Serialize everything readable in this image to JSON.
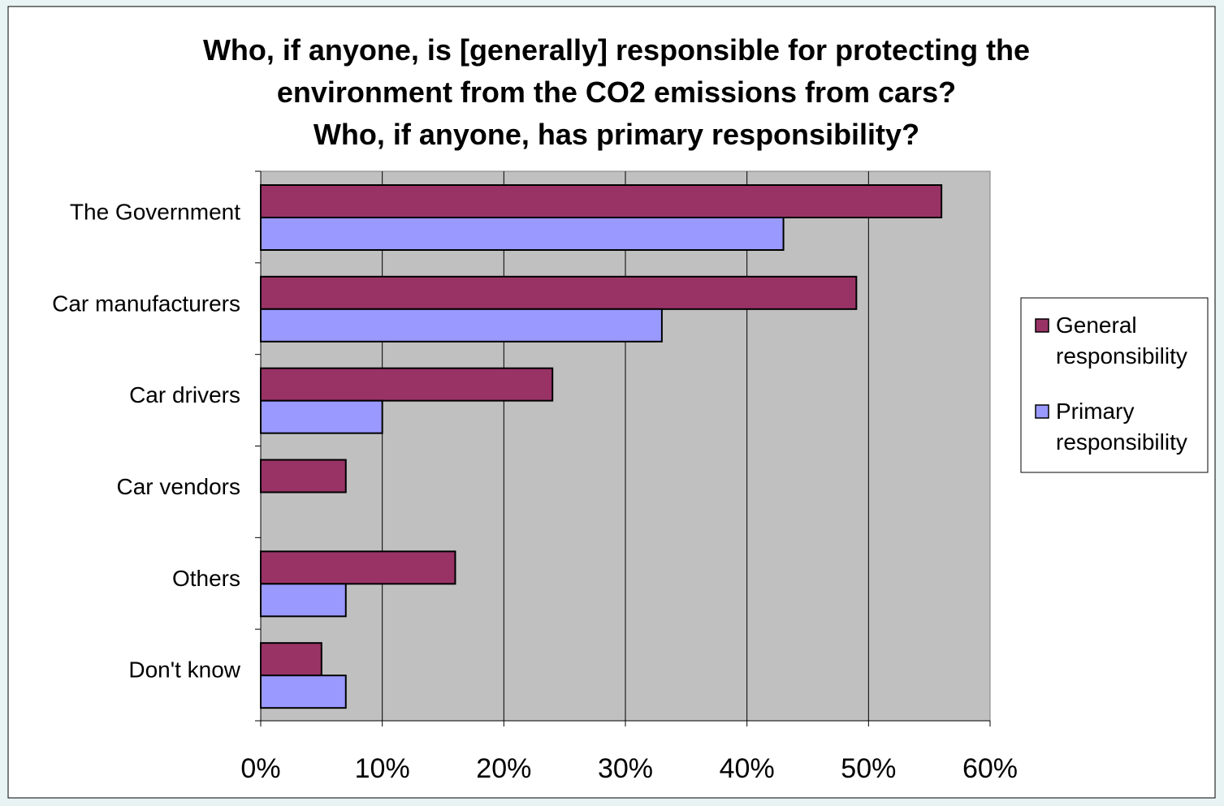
{
  "chart_data": {
    "type": "bar",
    "orientation": "horizontal",
    "title_lines": [
      "Who, if anyone, is [generally] responsible for protecting the",
      "environment from the CO2 emissions from cars?",
      "Who, if anyone, has primary responsibility?"
    ],
    "categories": [
      "The Government",
      "Car manufacturers",
      "Car drivers",
      "Car vendors",
      "Others",
      "Don't know"
    ],
    "series": [
      {
        "name": "General responsibility",
        "legend_lines": [
          "General",
          "responsibility"
        ],
        "color": "#993366",
        "values": [
          56,
          49,
          24,
          7,
          16,
          5
        ]
      },
      {
        "name": "Primary responsibility",
        "legend_lines": [
          "Primary",
          "responsibility"
        ],
        "color": "#9999ff",
        "values": [
          43,
          33,
          10,
          null,
          7,
          7
        ]
      }
    ],
    "x_ticks": [
      "0%",
      "10%",
      "20%",
      "30%",
      "40%",
      "50%",
      "60%"
    ],
    "xlim": [
      0,
      60
    ],
    "grid": true,
    "plot_background": "#c0c0c0",
    "legend_position": "right"
  }
}
